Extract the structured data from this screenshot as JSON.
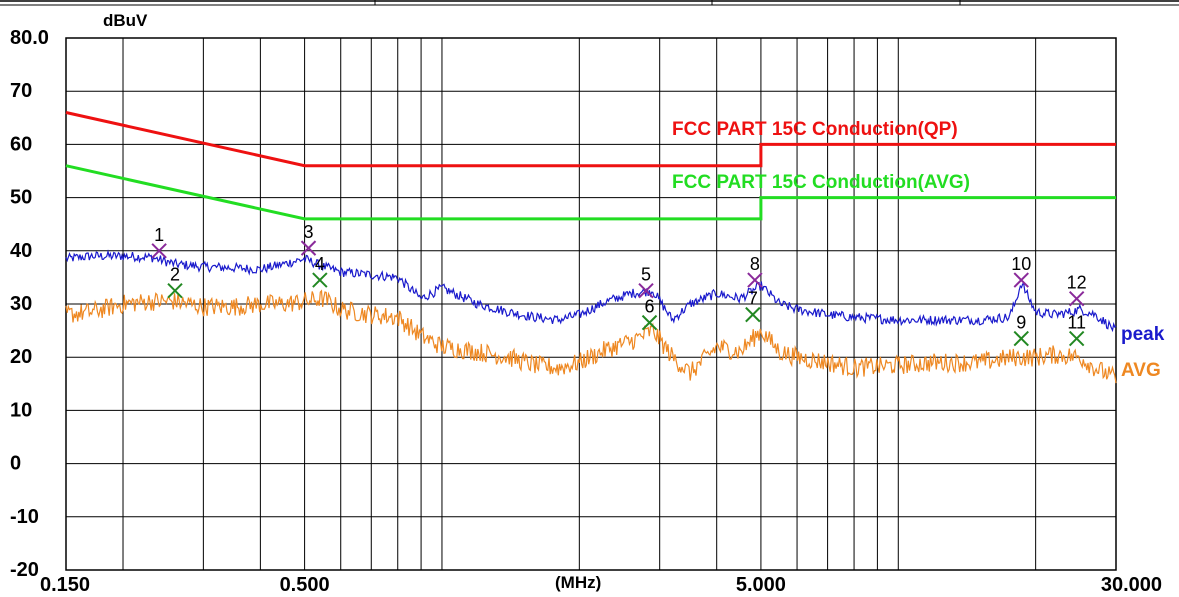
{
  "chart_data": {
    "type": "line",
    "ylabel": "dBuV",
    "xlabel": "(MHz)",
    "x_scale": "log",
    "xlim": [
      0.15,
      30
    ],
    "ylim": [
      -20,
      80
    ],
    "y_ticks": [
      "80.0",
      "70",
      "60",
      "50",
      "40",
      "30",
      "20",
      "10",
      "0",
      "-10",
      "-20"
    ],
    "x_tick_labels": [
      {
        "x": 0.15,
        "label": "0.150"
      },
      {
        "x": 0.5,
        "label": "0.500"
      },
      {
        "x": 5,
        "label": "5.000"
      },
      {
        "x": 30,
        "label": "30.000"
      }
    ],
    "grid": true,
    "limits": [
      {
        "name": "FCC PART 15C  Conduction(QP)",
        "color": "#ee1111",
        "points": [
          [
            0.15,
            66
          ],
          [
            0.5,
            56
          ],
          [
            5,
            56
          ],
          [
            5,
            60
          ],
          [
            30,
            60
          ]
        ]
      },
      {
        "name": "FCC PART 15C Conduction(AVG)",
        "color": "#22dd22",
        "points": [
          [
            0.15,
            56
          ],
          [
            0.5,
            46
          ],
          [
            5,
            46
          ],
          [
            5,
            50
          ],
          [
            30,
            50
          ]
        ]
      }
    ],
    "series": [
      {
        "name": "peak",
        "color": "#1a1acc",
        "x": [
          0.15,
          0.17,
          0.2,
          0.23,
          0.26,
          0.3,
          0.35,
          0.4,
          0.45,
          0.5,
          0.55,
          0.6,
          0.7,
          0.8,
          0.9,
          1.0,
          1.2,
          1.4,
          1.6,
          1.8,
          2.0,
          2.3,
          2.6,
          2.9,
          3.2,
          3.5,
          4.0,
          4.5,
          5.0,
          5.5,
          6.0,
          7.0,
          8.0,
          10.0,
          12.0,
          15.0,
          17.5,
          18.0,
          18.6,
          20.0,
          22.0,
          24.0,
          25.0,
          27.0,
          30.0
        ],
        "y": [
          38.5,
          39.0,
          39.0,
          38.8,
          37.5,
          37.0,
          36.8,
          36.5,
          37.5,
          38.5,
          37.0,
          36.0,
          35.5,
          35.0,
          31.0,
          33.0,
          30.0,
          28.5,
          27.5,
          27.0,
          28.0,
          30.5,
          32.0,
          32.5,
          27.0,
          30.0,
          32.0,
          31.0,
          33.5,
          30.0,
          29.0,
          28.0,
          27.5,
          27.0,
          27.0,
          27.0,
          27.5,
          30.0,
          34.0,
          28.5,
          28.0,
          28.5,
          29.0,
          28.0,
          25.0
        ]
      },
      {
        "name": "AVG",
        "color": "#ee8822",
        "x": [
          0.15,
          0.17,
          0.2,
          0.23,
          0.26,
          0.3,
          0.35,
          0.4,
          0.45,
          0.5,
          0.55,
          0.6,
          0.7,
          0.8,
          0.9,
          1.0,
          1.2,
          1.4,
          1.6,
          1.8,
          2.0,
          2.3,
          2.6,
          2.9,
          3.2,
          3.5,
          4.0,
          4.5,
          5.0,
          5.5,
          6.0,
          7.0,
          8.0,
          10.0,
          12.0,
          15.0,
          18.0,
          20.0,
          22.0,
          25.0,
          27.0,
          30.0
        ],
        "y": [
          28.0,
          28.5,
          30.0,
          30.5,
          30.5,
          29.5,
          29.5,
          30.0,
          30.0,
          30.5,
          31.0,
          29.0,
          28.0,
          27.5,
          24.0,
          22.0,
          21.0,
          20.0,
          18.5,
          18.0,
          19.0,
          21.5,
          23.0,
          25.0,
          20.0,
          17.0,
          22.0,
          21.0,
          25.0,
          21.0,
          20.0,
          19.0,
          18.0,
          18.5,
          19.0,
          19.0,
          20.0,
          20.0,
          20.5,
          20.0,
          18.0,
          16.0
        ]
      }
    ],
    "markers": [
      {
        "label": "1",
        "series": "peak",
        "x": 0.24,
        "y": 40.0
      },
      {
        "label": "2",
        "series": "AVG",
        "x": 0.26,
        "y": 32.5
      },
      {
        "label": "3",
        "series": "peak",
        "x": 0.51,
        "y": 40.5
      },
      {
        "label": "4",
        "series": "AVG",
        "x": 0.54,
        "y": 34.5
      },
      {
        "label": "5",
        "series": "peak",
        "x": 2.8,
        "y": 32.5
      },
      {
        "label": "6",
        "series": "AVG",
        "x": 2.85,
        "y": 26.5
      },
      {
        "label": "8",
        "series": "peak",
        "x": 4.85,
        "y": 34.5
      },
      {
        "label": "7",
        "series": "AVG",
        "x": 4.8,
        "y": 28.0
      },
      {
        "label": "10",
        "series": "peak",
        "x": 18.6,
        "y": 34.5
      },
      {
        "label": "9",
        "series": "AVG",
        "x": 18.6,
        "y": 23.5
      },
      {
        "label": "12",
        "series": "peak",
        "x": 24.6,
        "y": 31.0
      },
      {
        "label": "11",
        "series": "AVG",
        "x": 24.6,
        "y": 23.5
      }
    ]
  }
}
